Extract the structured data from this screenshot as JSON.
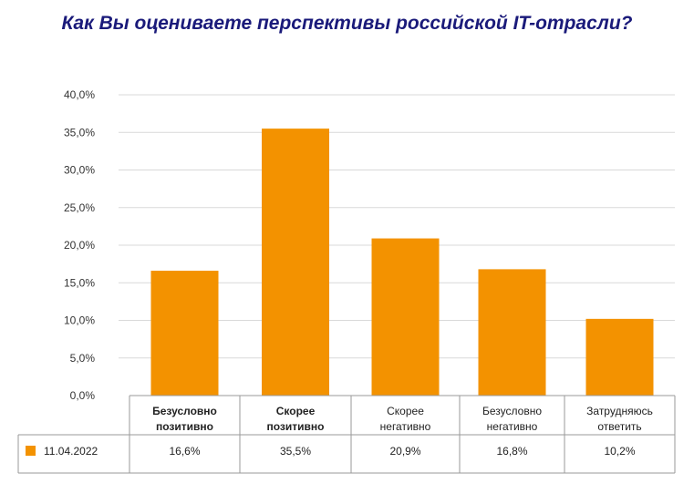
{
  "chart_data": {
    "type": "bar",
    "title": "Как Вы оцениваете перспективы российской IT-отрасли?",
    "categories": [
      [
        "Безусловно",
        "позитивно"
      ],
      [
        "Скорее",
        "позитивно"
      ],
      [
        "Скорее",
        "негативно"
      ],
      [
        "Безусловно",
        "негативно"
      ],
      [
        "Затрудняюсь",
        "ответить"
      ]
    ],
    "category_bold": [
      true,
      true,
      false,
      false,
      false
    ],
    "series": [
      {
        "name": "11.04.2022",
        "values": [
          16.6,
          35.5,
          20.9,
          16.8,
          10.2
        ],
        "labels": [
          "16,6%",
          "35,5%",
          "20,9%",
          "16,8%",
          "10,2%"
        ],
        "color": "#f39200"
      }
    ],
    "ylim": [
      0,
      40
    ],
    "yticks": [
      "0,0%",
      "5,0%",
      "10,0%",
      "15,0%",
      "20,0%",
      "25,0%",
      "30,0%",
      "35,0%",
      "40,0%"
    ],
    "grid": true,
    "legend": "data-table"
  }
}
